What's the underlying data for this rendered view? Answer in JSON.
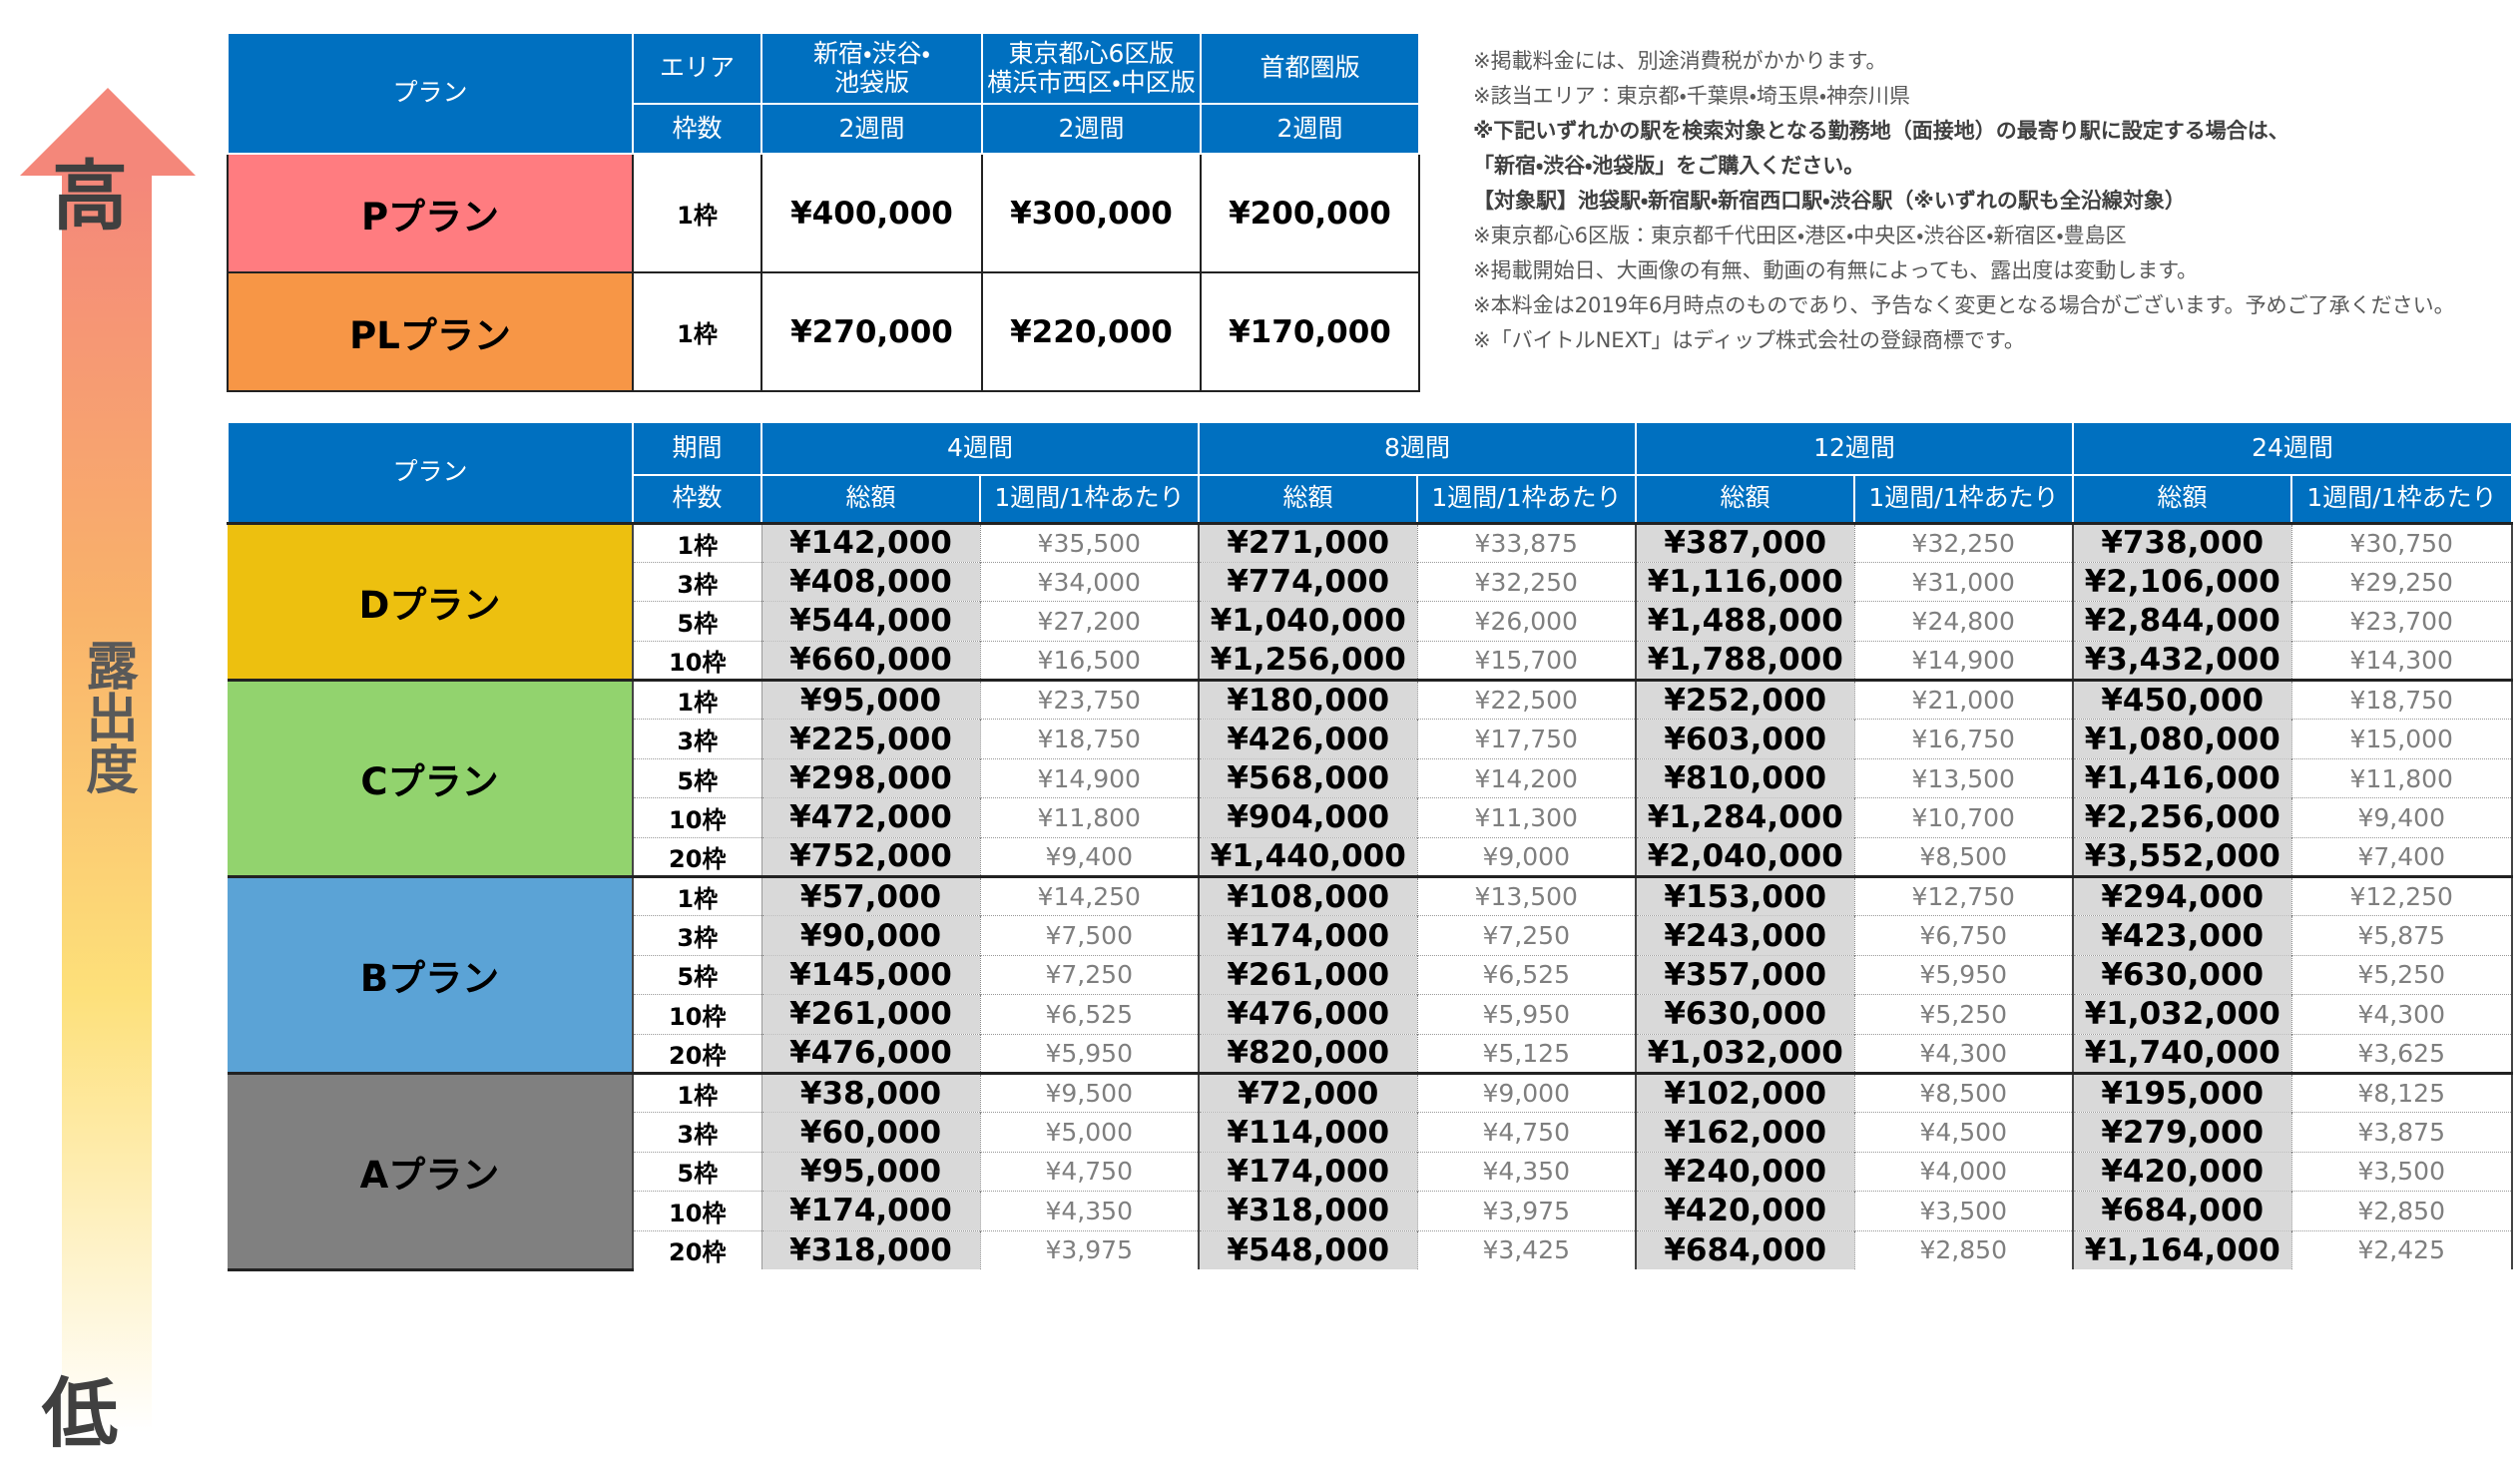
{
  "arrow": {
    "high": "高",
    "middle": "露出度",
    "low": "低"
  },
  "top_table": {
    "header": {
      "plan": "プラン",
      "area": "エリア",
      "slots": "枠数",
      "regions": [
        "新宿・渋谷・\n池袋版",
        "東京都心6区版\n横浜市西区・中区版",
        "首都圏版"
      ],
      "periods": [
        "2週間",
        "2週間",
        "2週間"
      ]
    },
    "rows": [
      {
        "plan": "Pプラン",
        "color": "#ff7c80",
        "slots": "1枠",
        "prices": [
          "¥400,000",
          "¥300,000",
          "¥200,000"
        ]
      },
      {
        "plan": "PLプラン",
        "color": "#f79646",
        "slots": "1枠",
        "prices": [
          "¥270,000",
          "¥220,000",
          "¥170,000"
        ]
      }
    ]
  },
  "notes": [
    {
      "text": "※掲載料金には、別途消費税がかかります。",
      "bold": false
    },
    {
      "text": "※該当エリア：東京都・千葉県・埼玉県・神奈川県",
      "bold": false
    },
    {
      "text": "※下記いずれかの駅を検索対象となる勤務地（面接地）の最寄り駅に設定する場合は、",
      "bold": true
    },
    {
      "text": "「新宿・渋谷・池袋版」をご購入ください。",
      "bold": true
    },
    {
      "text": "【対象駅】池袋駅・新宿駅・新宿西口駅・渋谷駅（※いずれの駅も全沿線対象）",
      "bold": true
    },
    {
      "text": "※東京都心6区版：東京都千代田区・港区・中央区・渋谷区・新宿区・豊島区",
      "bold": false
    },
    {
      "text": "※掲載開始日、大画像の有無、動画の有無によっても、露出度は変動します。",
      "bold": false
    },
    {
      "text": "※本料金は2019年6月時点のものであり、予告なく変更となる場合がございます。予めご了承ください。",
      "bold": false
    },
    {
      "text": "※「バイトルNEXT」はディップ株式会社の登録商標です。",
      "bold": false
    }
  ],
  "bottom_table": {
    "header": {
      "plan": "プラン",
      "period": "期間",
      "slots": "枠数",
      "periods": [
        "4週間",
        "8週間",
        "12週間",
        "24週間"
      ],
      "total": "総額",
      "per": "1週間/1枠あたり"
    },
    "plans": [
      {
        "name": "Dプラン",
        "color": "#edc00f",
        "rows": [
          [
            "1枠",
            "¥142,000",
            "¥35,500",
            "¥271,000",
            "¥33,875",
            "¥387,000",
            "¥32,250",
            "¥738,000",
            "¥30,750"
          ],
          [
            "3枠",
            "¥408,000",
            "¥34,000",
            "¥774,000",
            "¥32,250",
            "¥1,116,000",
            "¥31,000",
            "¥2,106,000",
            "¥29,250"
          ],
          [
            "5枠",
            "¥544,000",
            "¥27,200",
            "¥1,040,000",
            "¥26,000",
            "¥1,488,000",
            "¥24,800",
            "¥2,844,000",
            "¥23,700"
          ],
          [
            "10枠",
            "¥660,000",
            "¥16,500",
            "¥1,256,000",
            "¥15,700",
            "¥1,788,000",
            "¥14,900",
            "¥3,432,000",
            "¥14,300"
          ]
        ]
      },
      {
        "name": "Cプラン",
        "color": "#92d36e",
        "rows": [
          [
            "1枠",
            "¥95,000",
            "¥23,750",
            "¥180,000",
            "¥22,500",
            "¥252,000",
            "¥21,000",
            "¥450,000",
            "¥18,750"
          ],
          [
            "3枠",
            "¥225,000",
            "¥18,750",
            "¥426,000",
            "¥17,750",
            "¥603,000",
            "¥16,750",
            "¥1,080,000",
            "¥15,000"
          ],
          [
            "5枠",
            "¥298,000",
            "¥14,900",
            "¥568,000",
            "¥14,200",
            "¥810,000",
            "¥13,500",
            "¥1,416,000",
            "¥11,800"
          ],
          [
            "10枠",
            "¥472,000",
            "¥11,800",
            "¥904,000",
            "¥11,300",
            "¥1,284,000",
            "¥10,700",
            "¥2,256,000",
            "¥9,400"
          ],
          [
            "20枠",
            "¥752,000",
            "¥9,400",
            "¥1,440,000",
            "¥9,000",
            "¥2,040,000",
            "¥8,500",
            "¥3,552,000",
            "¥7,400"
          ]
        ]
      },
      {
        "name": "Bプラン",
        "color": "#5ba3d6",
        "rows": [
          [
            "1枠",
            "¥57,000",
            "¥14,250",
            "¥108,000",
            "¥13,500",
            "¥153,000",
            "¥12,750",
            "¥294,000",
            "¥12,250"
          ],
          [
            "3枠",
            "¥90,000",
            "¥7,500",
            "¥174,000",
            "¥7,250",
            "¥243,000",
            "¥6,750",
            "¥423,000",
            "¥5,875"
          ],
          [
            "5枠",
            "¥145,000",
            "¥7,250",
            "¥261,000",
            "¥6,525",
            "¥357,000",
            "¥5,950",
            "¥630,000",
            "¥5,250"
          ],
          [
            "10枠",
            "¥261,000",
            "¥6,525",
            "¥476,000",
            "¥5,950",
            "¥630,000",
            "¥5,250",
            "¥1,032,000",
            "¥4,300"
          ],
          [
            "20枠",
            "¥476,000",
            "¥5,950",
            "¥820,000",
            "¥5,125",
            "¥1,032,000",
            "¥4,300",
            "¥1,740,000",
            "¥3,625"
          ]
        ]
      },
      {
        "name": "Aプラン",
        "color": "#808080",
        "rows": [
          [
            "1枠",
            "¥38,000",
            "¥9,500",
            "¥72,000",
            "¥9,000",
            "¥102,000",
            "¥8,500",
            "¥195,000",
            "¥8,125"
          ],
          [
            "3枠",
            "¥60,000",
            "¥5,000",
            "¥114,000",
            "¥4,750",
            "¥162,000",
            "¥4,500",
            "¥279,000",
            "¥3,875"
          ],
          [
            "5枠",
            "¥95,000",
            "¥4,750",
            "¥174,000",
            "¥4,350",
            "¥240,000",
            "¥4,000",
            "¥420,000",
            "¥3,500"
          ],
          [
            "10枠",
            "¥174,000",
            "¥4,350",
            "¥318,000",
            "¥3,975",
            "¥420,000",
            "¥3,500",
            "¥684,000",
            "¥2,850"
          ],
          [
            "20枠",
            "¥318,000",
            "¥3,975",
            "¥548,000",
            "¥3,425",
            "¥684,000",
            "¥2,850",
            "¥1,164,000",
            "¥2,425"
          ]
        ]
      }
    ]
  }
}
